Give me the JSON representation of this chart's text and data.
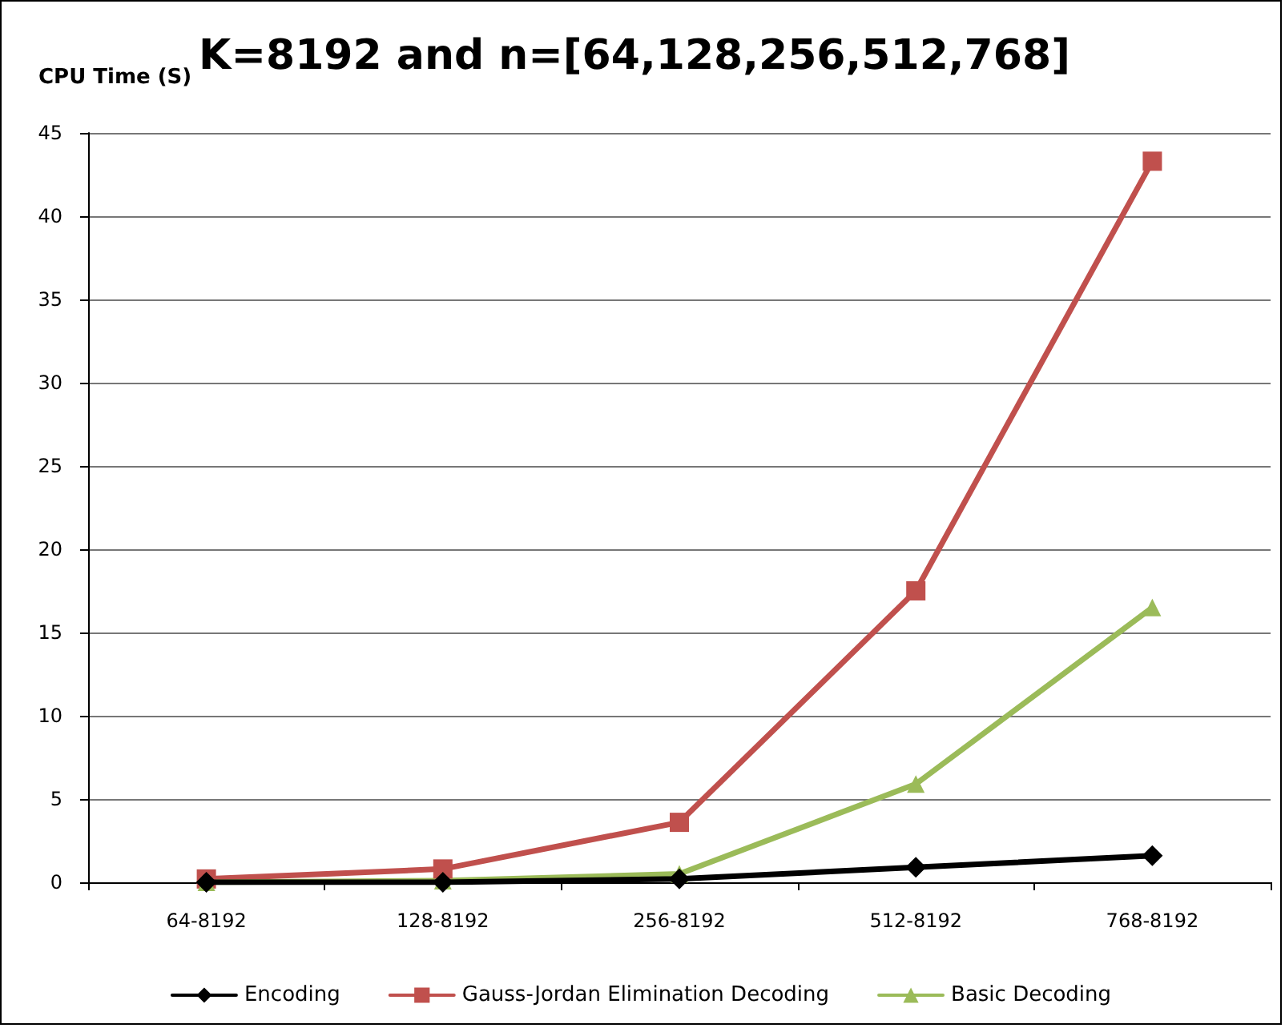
{
  "chart_data": {
    "type": "line",
    "title": "K=8192 and n=[64,128,256,512,768]",
    "ylabel": "CPU Time (S)",
    "categories": [
      "64-8192",
      "128-8192",
      "256-8192",
      "512-8192",
      "768-8192"
    ],
    "series": [
      {
        "name": "Encoding",
        "color": "#000000",
        "marker": "diamond",
        "values": [
          0,
          0,
          0.2,
          0.9,
          1.6
        ]
      },
      {
        "name": "Gauss-Jordan Elimination Decoding",
        "color": "#c0504d",
        "marker": "square",
        "values": [
          0.2,
          0.8,
          3.6,
          17.5,
          43.3
        ]
      },
      {
        "name": "Basic Decoding",
        "color": "#9bbb59",
        "marker": "triangle",
        "values": [
          0,
          0.1,
          0.5,
          5.9,
          16.5
        ]
      }
    ],
    "ylim": [
      0,
      45
    ],
    "yticks": [
      0,
      5,
      10,
      15,
      20,
      25,
      30,
      35,
      40,
      45
    ],
    "grid": "y",
    "legend": "bottom",
    "line_style": "solid"
  }
}
